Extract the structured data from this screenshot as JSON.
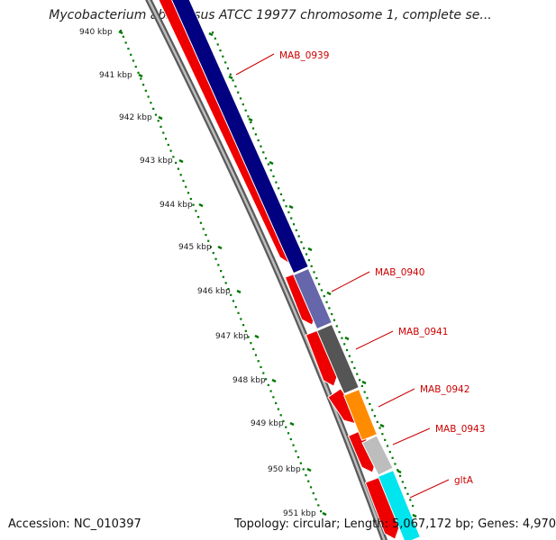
{
  "title": "Mycobacterium abscessus ATCC 19977 chromosome 1, complete se...",
  "accession_text": "Accession: NC_010397",
  "meta_text": "Topology: circular; Length: 5,067,172 bp; Genes: 4,970",
  "ruler": {
    "ticks": [
      "940 kbp",
      "941 kbp",
      "942 kbp",
      "943 kbp",
      "944 kbp",
      "945 kbp",
      "946 kbp",
      "947 kbp",
      "948 kbp",
      "949 kbp",
      "950 kbp",
      "951 kbp"
    ]
  },
  "genes": [
    {
      "label": "MAB_0939",
      "color": "#000080"
    },
    {
      "label": "MAB_0940",
      "color": "#6666aa"
    },
    {
      "label": "MAB_0941",
      "color": "#555555"
    },
    {
      "label": "MAB_0942",
      "color": "#ff8c00"
    },
    {
      "label": "MAB_0943",
      "color": "#bdbdbd"
    },
    {
      "label": "gltA",
      "color": "#00e5ee"
    }
  ],
  "colors": {
    "cds": "#ee0000",
    "backbone": "#777777",
    "ruler": "#007700",
    "label": "#cc0000"
  }
}
